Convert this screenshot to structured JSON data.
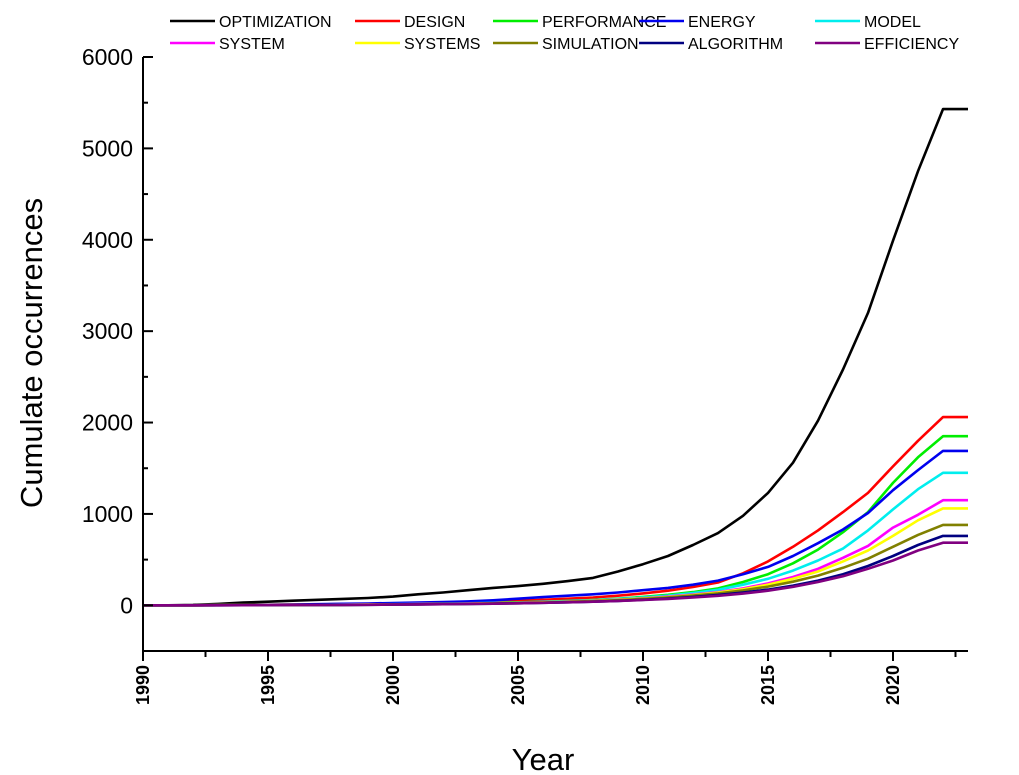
{
  "chart_data": {
    "type": "line",
    "xlabel": "Year",
    "ylabel": "Cumulate occurrences",
    "xlim": [
      1990,
      2023
    ],
    "ylim": [
      -500,
      6000
    ],
    "x_ticks": [
      "1990",
      "1995",
      "2000",
      "2005",
      "2010",
      "2015",
      "2020"
    ],
    "y_ticks": [
      "0",
      "1000",
      "2000",
      "3000",
      "4000",
      "5000",
      "6000"
    ],
    "legend_position": "top",
    "grid": false,
    "x": [
      1990,
      1991,
      1992,
      1993,
      1994,
      1995,
      1996,
      1997,
      1998,
      1999,
      2000,
      2001,
      2002,
      2003,
      2004,
      2005,
      2006,
      2007,
      2008,
      2009,
      2010,
      2011,
      2012,
      2013,
      2014,
      2015,
      2016,
      2017,
      2018,
      2019,
      2020,
      2021,
      2022,
      2023
    ],
    "series": [
      {
        "name": "OPTIMIZATION",
        "color": "#000000",
        "values": [
          0,
          0,
          5,
          15,
          30,
          40,
          50,
          60,
          70,
          80,
          95,
          120,
          140,
          165,
          190,
          210,
          235,
          265,
          300,
          370,
          450,
          540,
          660,
          790,
          980,
          1230,
          1560,
          2020,
          2580,
          3200,
          3990,
          4750,
          5430,
          5430
        ]
      },
      {
        "name": "DESIGN",
        "color": "#ff0000",
        "values": [
          0,
          0,
          0,
          2,
          4,
          6,
          8,
          10,
          13,
          16,
          20,
          25,
          30,
          35,
          42,
          50,
          60,
          72,
          85,
          105,
          130,
          160,
          200,
          250,
          350,
          480,
          640,
          820,
          1020,
          1230,
          1520,
          1800,
          2060,
          2060
        ]
      },
      {
        "name": "PERFORMANCE",
        "color": "#00ee00",
        "values": [
          0,
          0,
          0,
          1,
          2,
          3,
          5,
          7,
          9,
          11,
          14,
          17,
          20,
          24,
          28,
          33,
          40,
          48,
          58,
          72,
          92,
          115,
          145,
          185,
          255,
          340,
          460,
          610,
          800,
          1020,
          1340,
          1620,
          1850,
          1850
        ]
      },
      {
        "name": "ENERGY",
        "color": "#0000ee",
        "values": [
          0,
          0,
          0,
          2,
          4,
          6,
          9,
          12,
          16,
          20,
          25,
          30,
          36,
          43,
          55,
          72,
          90,
          105,
          120,
          140,
          165,
          190,
          225,
          270,
          340,
          420,
          540,
          680,
          830,
          1010,
          1260,
          1480,
          1690,
          1690
        ]
      },
      {
        "name": "MODEL",
        "color": "#00eeee",
        "values": [
          0,
          0,
          0,
          1,
          2,
          3,
          4,
          6,
          8,
          10,
          12,
          15,
          18,
          22,
          26,
          31,
          38,
          46,
          55,
          68,
          85,
          105,
          135,
          170,
          225,
          290,
          380,
          490,
          620,
          820,
          1050,
          1270,
          1450,
          1450
        ]
      },
      {
        "name": "SYSTEM",
        "color": "#ff00ff",
        "values": [
          0,
          0,
          0,
          1,
          2,
          3,
          4,
          5,
          7,
          9,
          11,
          13,
          16,
          19,
          23,
          28,
          34,
          41,
          50,
          62,
          77,
          95,
          117,
          145,
          185,
          240,
          310,
          400,
          520,
          650,
          850,
          990,
          1150,
          1150
        ]
      },
      {
        "name": "SYSTEMS",
        "color": "#ffff00",
        "values": [
          0,
          0,
          0,
          1,
          2,
          3,
          4,
          5,
          6,
          8,
          10,
          12,
          15,
          18,
          22,
          27,
          33,
          40,
          49,
          60,
          74,
          90,
          112,
          140,
          175,
          225,
          290,
          370,
          480,
          600,
          760,
          930,
          1060,
          1060
        ]
      },
      {
        "name": "SIMULATION",
        "color": "#808000",
        "values": [
          0,
          0,
          0,
          1,
          2,
          2,
          3,
          4,
          5,
          7,
          9,
          11,
          14,
          17,
          21,
          26,
          31,
          38,
          46,
          56,
          70,
          86,
          106,
          130,
          163,
          205,
          258,
          325,
          410,
          510,
          640,
          770,
          880,
          880
        ]
      },
      {
        "name": "ALGORITHM",
        "color": "#000080",
        "values": [
          0,
          0,
          0,
          0,
          1,
          2,
          3,
          4,
          5,
          6,
          8,
          10,
          12,
          15,
          18,
          22,
          27,
          33,
          40,
          48,
          60,
          74,
          92,
          114,
          140,
          172,
          215,
          270,
          340,
          430,
          540,
          660,
          760,
          760
        ]
      },
      {
        "name": "EFFICIENCY",
        "color": "#800080",
        "values": [
          0,
          0,
          0,
          0,
          1,
          2,
          3,
          4,
          5,
          6,
          8,
          10,
          12,
          15,
          18,
          22,
          27,
          33,
          39,
          47,
          58,
          70,
          85,
          104,
          128,
          160,
          202,
          255,
          318,
          400,
          490,
          600,
          685,
          685
        ]
      }
    ]
  }
}
